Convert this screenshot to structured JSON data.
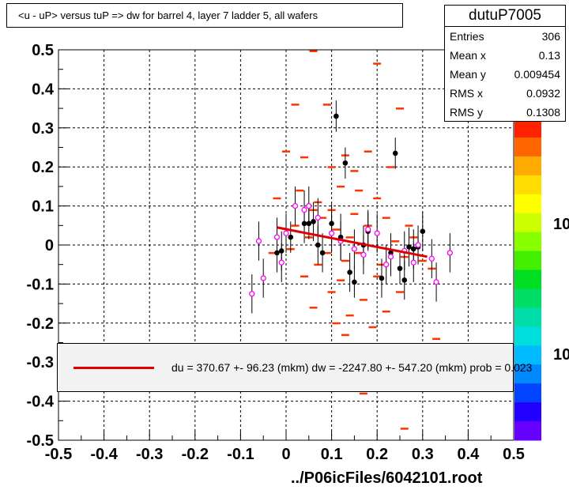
{
  "title": "<u - uP>       versus  tuP =>  dw for barrel 4, layer 7 ladder 5, all wafers",
  "stats": {
    "name": "dutuP7005",
    "rows": [
      {
        "key": "Entries",
        "value": "306"
      },
      {
        "key": "Mean x",
        "value": "0.13"
      },
      {
        "key": "Mean y",
        "value": "0.009454"
      },
      {
        "key": "RMS x",
        "value": "0.0932"
      },
      {
        "key": "RMS y",
        "value": "0.1308"
      }
    ]
  },
  "fit_legend": "du =  370.67 +- 96.23 (mkm) dw = -2247.80 +- 547.20 (mkm) prob = 0.023",
  "footer": "../P06icFiles/6042101.root",
  "colorbar_labels": [
    "10",
    "10"
  ],
  "colors": {
    "fit": "#e00000",
    "hist": "#ff3300",
    "profile": "#000000",
    "marker": "#ff00ff"
  },
  "chart_data": {
    "type": "scatter",
    "xlim": [
      -0.5,
      0.5
    ],
    "ylim": [
      -0.5,
      0.5
    ],
    "xticks": [
      -0.5,
      -0.4,
      -0.3,
      -0.2,
      -0.1,
      0,
      0.1,
      0.2,
      0.3,
      0.4,
      0.5
    ],
    "yticks": [
      -0.5,
      -0.4,
      -0.3,
      -0.2,
      -0.1,
      0,
      0.1,
      0.2,
      0.3,
      0.4,
      0.5
    ],
    "grid": true,
    "fit_line": {
      "x": [
        -0.02,
        0.31
      ],
      "y": [
        0.045,
        -0.03
      ]
    },
    "cells": [
      [
        0.06,
        0.497
      ],
      [
        0.02,
        0.36
      ],
      [
        0.09,
        0.36
      ],
      [
        0.2,
        0.465
      ],
      [
        0.04,
        0.225
      ],
      [
        0.13,
        0.23
      ],
      [
        0.15,
        0.19
      ],
      [
        0.18,
        0.24
      ],
      [
        0.25,
        0.35
      ],
      [
        0.0,
        0.24
      ],
      [
        0.1,
        0.2
      ],
      [
        0.23,
        0.2
      ],
      [
        0.03,
        0.14
      ],
      [
        0.12,
        0.15
      ],
      [
        0.2,
        0.12
      ],
      [
        0.06,
        0.09
      ],
      [
        0.1,
        0.09
      ],
      [
        0.08,
        0.07
      ],
      [
        0.15,
        0.08
      ],
      [
        0.22,
        0.07
      ],
      [
        0.02,
        0.05
      ],
      [
        0.11,
        0.04
      ],
      [
        0.18,
        0.05
      ],
      [
        0.27,
        0.05
      ],
      [
        0.05,
        0.02
      ],
      [
        0.14,
        0.02
      ],
      [
        0.24,
        0.01
      ],
      [
        0.01,
        -0.01
      ],
      [
        0.09,
        -0.02
      ],
      [
        0.16,
        -0.02
      ],
      [
        0.26,
        -0.03
      ],
      [
        0.07,
        -0.05
      ],
      [
        0.13,
        -0.04
      ],
      [
        0.21,
        -0.05
      ],
      [
        0.3,
        -0.04
      ],
      [
        0.04,
        -0.08
      ],
      [
        0.12,
        -0.09
      ],
      [
        0.2,
        -0.08
      ],
      [
        0.1,
        -0.12
      ],
      [
        0.17,
        -0.14
      ],
      [
        0.25,
        -0.12
      ],
      [
        0.06,
        -0.16
      ],
      [
        0.14,
        -0.18
      ],
      [
        0.22,
        -0.17
      ],
      [
        0.11,
        -0.2
      ],
      [
        0.19,
        -0.21
      ],
      [
        0.07,
        0.11
      ],
      [
        0.16,
        0.14
      ],
      [
        -0.02,
        0.12
      ],
      [
        0.28,
        0.02
      ],
      [
        0.32,
        -0.06
      ],
      [
        -0.03,
        -0.02
      ],
      [
        0.17,
        -0.38
      ],
      [
        0.26,
        -0.47
      ],
      [
        0.13,
        -0.23
      ],
      [
        0.33,
        -0.24
      ]
    ],
    "profile": [
      [
        -0.02,
        -0.02,
        0.05
      ],
      [
        -0.01,
        -0.015,
        0.05
      ],
      [
        0.01,
        0.02,
        0.04
      ],
      [
        0.04,
        0.055,
        0.05
      ],
      [
        0.05,
        0.055,
        0.04
      ],
      [
        0.06,
        0.06,
        0.05
      ],
      [
        0.07,
        0.0,
        0.05
      ],
      [
        0.08,
        -0.02,
        0.05
      ],
      [
        0.1,
        0.055,
        0.05
      ],
      [
        0.11,
        0.33,
        0.04
      ],
      [
        0.12,
        0.02,
        0.06
      ],
      [
        0.13,
        0.21,
        0.04
      ],
      [
        0.14,
        -0.07,
        0.05
      ],
      [
        0.15,
        -0.095,
        0.04
      ],
      [
        0.17,
        0.0,
        0.05
      ],
      [
        0.18,
        0.035,
        0.05
      ],
      [
        0.21,
        -0.085,
        0.05
      ],
      [
        0.23,
        -0.02,
        0.05
      ],
      [
        0.24,
        0.235,
        0.04
      ],
      [
        0.25,
        -0.06,
        0.04
      ],
      [
        0.26,
        -0.09,
        0.05
      ],
      [
        0.27,
        -0.005,
        0.05
      ],
      [
        0.28,
        -0.01,
        0.05
      ],
      [
        0.29,
        -0.005,
        0.04
      ],
      [
        0.3,
        0.035,
        0.05
      ]
    ],
    "markers": [
      [
        -0.075,
        -0.125
      ],
      [
        -0.06,
        0.01
      ],
      [
        -0.05,
        -0.085
      ],
      [
        -0.02,
        0.02
      ],
      [
        -0.01,
        -0.045
      ],
      [
        0.0,
        0.03
      ],
      [
        0.02,
        0.1
      ],
      [
        0.04,
        0.09
      ],
      [
        0.05,
        0.1
      ],
      [
        0.07,
        0.07
      ],
      [
        0.1,
        0.03
      ],
      [
        0.12,
        0.01
      ],
      [
        0.15,
        -0.01
      ],
      [
        0.17,
        -0.025
      ],
      [
        0.18,
        0.04
      ],
      [
        0.2,
        0.03
      ],
      [
        0.22,
        -0.05
      ],
      [
        0.23,
        -0.03
      ],
      [
        0.26,
        -0.015
      ],
      [
        0.28,
        -0.045
      ],
      [
        0.29,
        0.0
      ],
      [
        0.32,
        -0.035
      ],
      [
        0.36,
        -0.02
      ],
      [
        0.33,
        -0.095
      ]
    ]
  }
}
